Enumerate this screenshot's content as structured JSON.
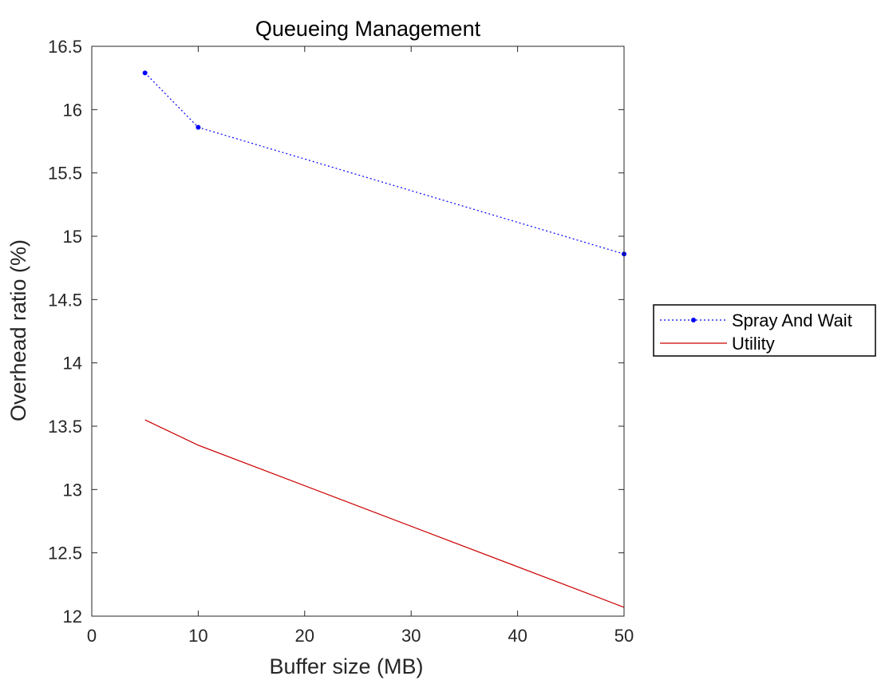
{
  "chart_data": {
    "type": "line",
    "title": "Queueing Management",
    "xlabel": "Buffer size (MB)",
    "ylabel": "Overhead ratio (%)",
    "xlim": [
      0,
      50
    ],
    "ylim": [
      12,
      16.5
    ],
    "xticks": [
      0,
      10,
      20,
      30,
      40,
      50
    ],
    "yticks": [
      12,
      12.5,
      13,
      13.5,
      14,
      14.5,
      15,
      15.5,
      16,
      16.5
    ],
    "grid": false,
    "legend_position": "outside-right",
    "series": [
      {
        "name": "Spray And Wait",
        "x": [
          5,
          10,
          50
        ],
        "y": [
          16.29,
          15.86,
          14.86
        ],
        "color": "#0000ff",
        "line_style": "dotted",
        "marker": "dot"
      },
      {
        "name": "Utility",
        "x": [
          5,
          10,
          50
        ],
        "y": [
          13.55,
          13.35,
          12.07
        ],
        "color": "#cc0000",
        "line_style": "solid",
        "marker": "none"
      }
    ]
  }
}
